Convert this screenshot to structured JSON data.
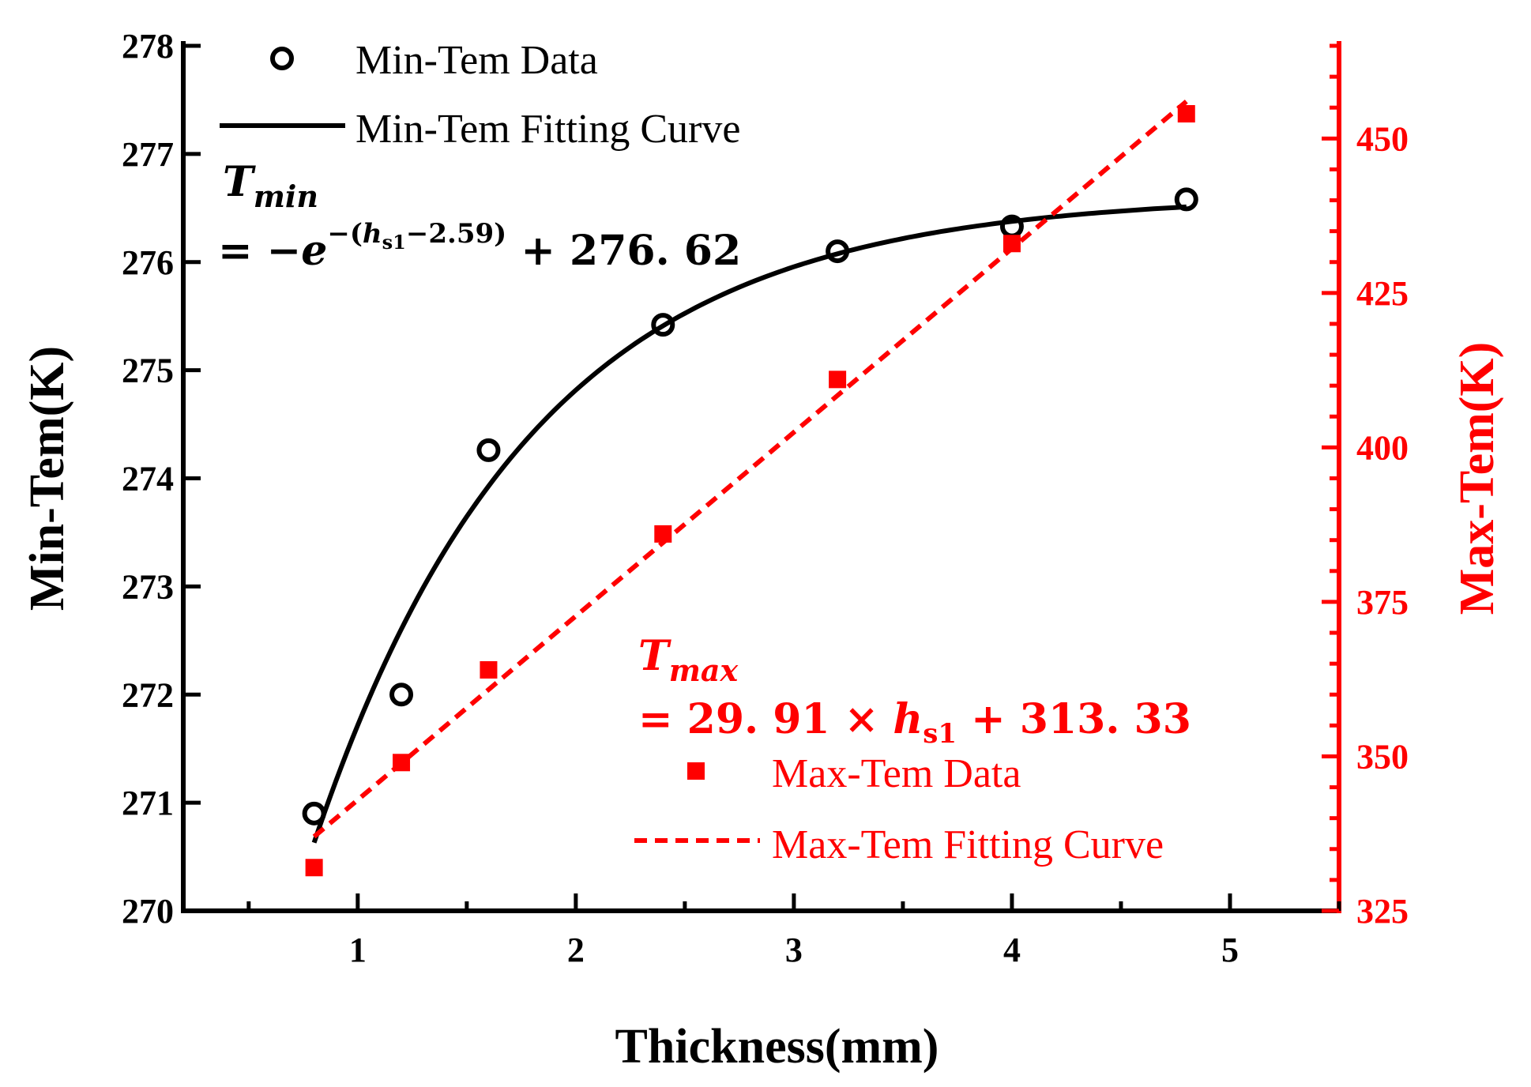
{
  "chart_data": {
    "type": "scatter",
    "x_axis": {
      "label": "Thickness(mm)",
      "range": [
        0.2,
        5.5
      ],
      "ticks": [
        1,
        2,
        3,
        4,
        5
      ],
      "tick_labels": [
        "1",
        "2",
        "3",
        "4",
        "5"
      ],
      "minor_step": 0.5
    },
    "y_left": {
      "label": "Min-Tem(K)",
      "range": [
        270,
        278
      ],
      "ticks": [
        270,
        271,
        272,
        273,
        274,
        275,
        276,
        277,
        278
      ],
      "tick_labels": [
        "270",
        "271",
        "272",
        "273",
        "274",
        "275",
        "276",
        "277",
        "278"
      ],
      "color": "#000000"
    },
    "y_right": {
      "label": "Max-Tem(K)",
      "range": [
        325,
        465
      ],
      "ticks": [
        325,
        350,
        375,
        400,
        425,
        450
      ],
      "tick_labels": [
        "325",
        "350",
        "375",
        "400",
        "425",
        "450"
      ],
      "minor_step": 5,
      "color": "#ff0000"
    },
    "series": [
      {
        "name": "Min-Tem Data",
        "kind": "scatter",
        "marker": "open-circle",
        "axis": "left",
        "color": "#000000",
        "x": [
          0.8,
          1.2,
          1.6,
          2.4,
          3.2,
          4.0,
          4.8
        ],
        "y": [
          270.9,
          272.0,
          274.26,
          275.42,
          276.1,
          276.33,
          276.58
        ]
      },
      {
        "name": "Min-Tem Fitting Curve",
        "kind": "line",
        "style": "solid",
        "axis": "left",
        "color": "#000000",
        "formula": "276.62 - exp(-(x - 2.59))",
        "x_range": [
          0.8,
          4.8
        ]
      },
      {
        "name": "Max-Tem Data",
        "kind": "scatter",
        "marker": "filled-square",
        "axis": "right",
        "color": "#ff0000",
        "x": [
          0.8,
          1.2,
          1.6,
          2.4,
          3.2,
          4.0,
          4.8
        ],
        "y": [
          332,
          349,
          364,
          386,
          411,
          433,
          454
        ]
      },
      {
        "name": "Max-Tem Fitting Curve",
        "kind": "line",
        "style": "dashed",
        "axis": "right",
        "color": "#ff0000",
        "x": [
          0.8,
          4.8
        ],
        "y": [
          337,
          456
        ]
      }
    ],
    "legend": {
      "position": "top-left / bottom-right",
      "min_data": "Min-Tem Data",
      "min_fit": "Min-Tem Fitting Curve",
      "max_data": "Max-Tem Data",
      "max_fit": "Max-Tem Fitting Curve"
    },
    "annotations": {
      "tmin_symbol": "T",
      "tmin_subscript": "min",
      "tmin_eq_start": "= −",
      "tmin_e": "e",
      "tmin_exp_open": "−(",
      "tmin_exp_h": "h",
      "tmin_exp_sub": "s1",
      "tmin_exp_close": "−2.59)",
      "tmin_eq_end": " + 276. 62",
      "tmax_symbol": "T",
      "tmax_subscript": "max",
      "tmax_eq_start": "= 29. 91 × ",
      "tmax_h": "h",
      "tmax_h_sub": "s1",
      "tmax_eq_end": " + 313. 33"
    }
  }
}
